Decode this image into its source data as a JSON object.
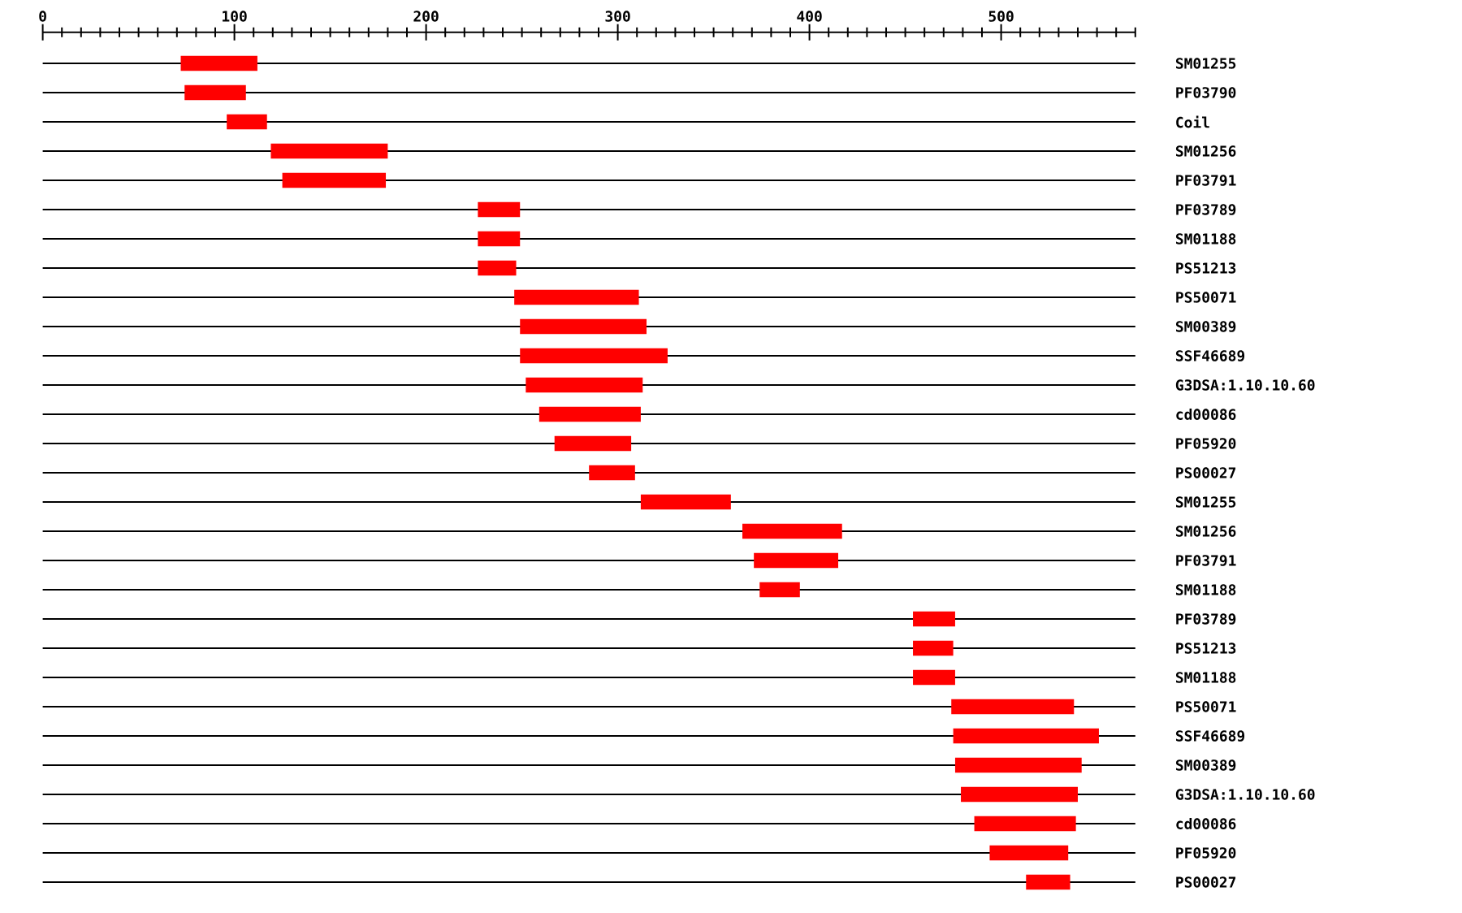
{
  "chart_data": {
    "type": "bar",
    "orientation": "horizontal",
    "color": "#ff0000",
    "grid": "y",
    "categories": [
      "SM01255",
      "PF03790",
      "Coil",
      "SM01256",
      "PF03791",
      "PF03789",
      "SM01188",
      "PS51213",
      "PS50071",
      "SM00389",
      "SSF46689",
      "G3DSA:1.10.10.60",
      "cd00086",
      "PF05920",
      "PS00027",
      "SM01255",
      "SM01256",
      "PF03791",
      "SM01188",
      "PF03789",
      "PS51213",
      "SM01188",
      "PS50071",
      "SSF46689",
      "SM00389",
      "G3DSA:1.10.10.60",
      "cd00086",
      "PF05920",
      "PS00027"
    ],
    "base": [
      72,
      74,
      96,
      119,
      125,
      227,
      227,
      227,
      246,
      249,
      249,
      252,
      259,
      267,
      285,
      312,
      365,
      371,
      374,
      454,
      454,
      454,
      474,
      475,
      476,
      479,
      486,
      494,
      513
    ],
    "values": [
      40,
      32,
      21,
      61,
      54,
      22,
      22,
      20,
      65,
      66,
      77,
      61,
      53,
      40,
      24,
      47,
      52,
      44,
      21,
      22,
      21,
      22,
      64,
      76,
      66,
      61,
      53,
      41,
      23
    ],
    "xlim": [
      0,
      570
    ],
    "xticks": [
      0,
      {
        "value": 10,
        "label": null
      },
      {
        "value": 20,
        "label": null
      },
      {
        "value": 30,
        "label": null
      },
      {
        "value": 40,
        "label": null
      },
      {
        "value": 50,
        "label": null
      },
      {
        "value": 60,
        "label": null
      },
      {
        "value": 70,
        "label": null
      },
      {
        "value": 80,
        "label": null
      },
      {
        "value": 90,
        "label": null
      },
      100,
      {
        "value": 110,
        "label": null
      },
      {
        "value": 120,
        "label": null
      },
      {
        "value": 130,
        "label": null
      },
      {
        "value": 140,
        "label": null
      },
      {
        "value": 150,
        "label": null
      },
      {
        "value": 160,
        "label": null
      },
      {
        "value": 170,
        "label": null
      },
      {
        "value": 180,
        "label": null
      },
      {
        "value": 190,
        "label": null
      },
      200,
      {
        "value": 210,
        "label": null
      },
      {
        "value": 220,
        "label": null
      },
      {
        "value": 230,
        "label": null
      },
      {
        "value": 240,
        "label": null
      },
      {
        "value": 250,
        "label": null
      },
      {
        "value": 260,
        "label": null
      },
      {
        "value": 270,
        "label": null
      },
      {
        "value": 280,
        "label": null
      },
      {
        "value": 290,
        "label": null
      },
      300,
      {
        "value": 310,
        "label": null
      },
      {
        "value": 320,
        "label": null
      },
      {
        "value": 330,
        "label": null
      },
      {
        "value": 340,
        "label": null
      },
      {
        "value": 350,
        "label": null
      },
      {
        "value": 360,
        "label": null
      },
      {
        "value": 370,
        "label": null
      },
      {
        "value": 380,
        "label": null
      },
      {
        "value": 390,
        "label": null
      },
      400,
      {
        "value": 410,
        "label": null
      },
      {
        "value": 420,
        "label": null
      },
      {
        "value": 430,
        "label": null
      },
      {
        "value": 440,
        "label": null
      },
      {
        "value": 450,
        "label": null
      },
      {
        "value": 460,
        "label": null
      },
      {
        "value": 470,
        "label": null
      },
      {
        "value": 480,
        "label": null
      },
      {
        "value": 490,
        "label": null
      },
      500,
      {
        "value": 510,
        "label": null
      },
      {
        "value": 520,
        "label": null
      },
      {
        "value": 530,
        "label": null
      },
      {
        "value": 540,
        "label": null
      },
      {
        "value": 550,
        "label": null
      },
      {
        "value": 560,
        "label": null
      },
      {
        "value": 570,
        "label": null
      }
    ]
  }
}
